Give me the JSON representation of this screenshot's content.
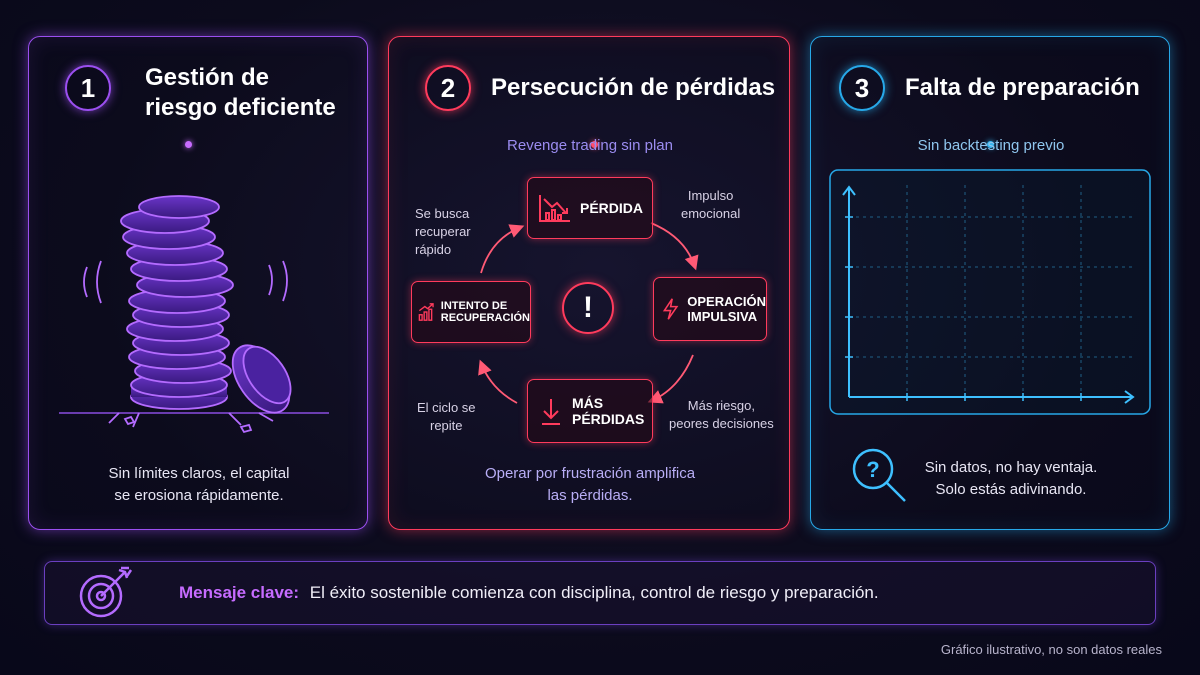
{
  "panel1": {
    "number": "1",
    "title_line1": "Gestión de",
    "title_line2": "riesgo deficiente",
    "caption_line1": "Sin límites claros, el capital",
    "caption_line2": "se erosiona rápidamente.",
    "accent_color": "#9b4ff0",
    "illustration_icon": "coin-stack-icon"
  },
  "panel2": {
    "number": "2",
    "title": "Persecución de pérdidas",
    "subtitle": "Revenge trading sin plan",
    "center_icon": "exclamation-icon",
    "cycle": {
      "perdida": "PÉRDIDA",
      "operacion_line1": "OPERACIÓN",
      "operacion_line2": "IMPULSIVA",
      "mas_perdidas_line1": "MÁS",
      "mas_perdidas_line2": "PÉRDIDAS",
      "intento_line1": "INTENTO DE",
      "intento_line2": "RECUPERACIÓN"
    },
    "notes": {
      "impulso_line1": "Impulso",
      "impulso_line2": "emocional",
      "riesgo_line1": "Más riesgo,",
      "riesgo_line2": "peores decisiones",
      "ciclo_line1": "El ciclo se",
      "ciclo_line2": "repite",
      "busca_line1": "Se busca",
      "busca_line2": "recuperar",
      "busca_line3": "rápido"
    },
    "caption_line1": "Operar por frustración amplifica",
    "caption_line2": "las pérdidas.",
    "accent_color": "#ff3b5c"
  },
  "panel3": {
    "number": "3",
    "title": "Falta de preparación",
    "subtitle": "Sin backtesting previo",
    "caption_line1": "Sin datos, no hay ventaja.",
    "caption_line2": "Solo estás adivinando.",
    "accent_color": "#27a8e8",
    "caption_icon": "magnifier-question-icon"
  },
  "banner": {
    "label": "Mensaje clave:",
    "text": "El éxito sostenible comienza con disciplina, control de riesgo y preparación.",
    "icon": "target-arrow-icon"
  },
  "footnote": "Gráfico ilustrativo, no son datos reales"
}
